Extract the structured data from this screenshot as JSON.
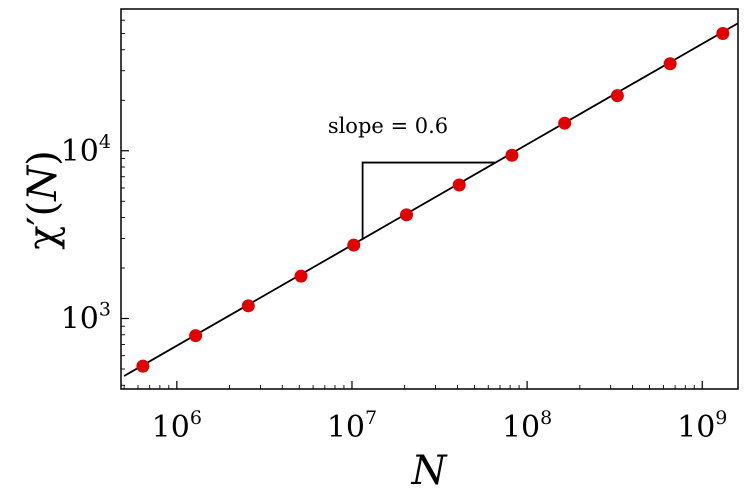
{
  "chart_data": {
    "type": "scatter",
    "x_scale": "log",
    "y_scale": "log",
    "xlabel": "N",
    "ylabel_base": "χ′(",
    "ylabel_var": "N",
    "ylabel_close": ")",
    "xlim": [
      480000,
      1600000000
    ],
    "ylim": [
      380,
      70000
    ],
    "x_ticks": [
      {
        "value": 1000000,
        "base": "10",
        "exp": "6"
      },
      {
        "value": 10000000,
        "base": "10",
        "exp": "7"
      },
      {
        "value": 100000000,
        "base": "10",
        "exp": "8"
      },
      {
        "value": 1000000000,
        "base": "10",
        "exp": "9"
      }
    ],
    "y_ticks": [
      {
        "value": 1000,
        "base": "10",
        "exp": "3"
      },
      {
        "value": 10000,
        "base": "10",
        "exp": "4"
      }
    ],
    "points": [
      {
        "x": 640000,
        "y": 520
      },
      {
        "x": 1280000,
        "y": 790
      },
      {
        "x": 2560000,
        "y": 1190
      },
      {
        "x": 5120000,
        "y": 1790
      },
      {
        "x": 10240000,
        "y": 2740
      },
      {
        "x": 20480000,
        "y": 4150
      },
      {
        "x": 40960000,
        "y": 6250
      },
      {
        "x": 81920000,
        "y": 9400
      },
      {
        "x": 163840000,
        "y": 14600
      },
      {
        "x": 327680000,
        "y": 21300
      },
      {
        "x": 655360000,
        "y": 33000
      },
      {
        "x": 1310720000,
        "y": 50000
      }
    ],
    "fit_line": {
      "slope": 0.6,
      "x_range": [
        500000,
        1600000000
      ],
      "anchor_x": 10240000,
      "anchor_y": 2780
    },
    "slope_triangle": {
      "x_start": 11500000,
      "x_end": 66000000,
      "label": "slope = 0.6"
    },
    "colors": {
      "points": "#e00000",
      "line": "#000000"
    },
    "grid": false,
    "legend": "none"
  }
}
